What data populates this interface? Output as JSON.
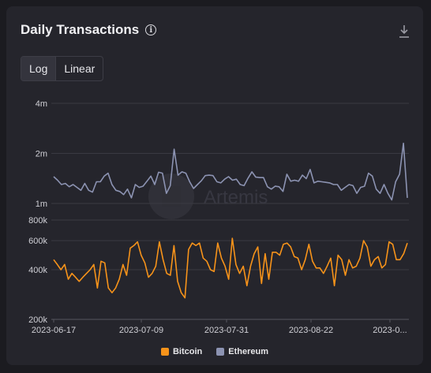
{
  "header": {
    "title": "Daily Transactions"
  },
  "icons": {
    "info": "info-icon",
    "download": "download-icon"
  },
  "scale_toggle": {
    "options": [
      "Log",
      "Linear"
    ],
    "selected": "Log"
  },
  "watermark": "Artemis",
  "colors": {
    "bitcoin": "#f7931a",
    "ethereum": "#8c93b2",
    "grid": "#3a3a42",
    "text": "#d0d0d6"
  },
  "chart_data": {
    "type": "line",
    "x_tick_labels": [
      "2023-06-17",
      "2023-07-09",
      "2023-07-31",
      "2023-08-22",
      "2023-0..."
    ],
    "upper_panel": {
      "scale": "log",
      "y_ticks": [
        "4m",
        "2m",
        "1m"
      ],
      "ylim": [
        1000000,
        4000000
      ]
    },
    "lower_panel": {
      "scale": "log",
      "y_ticks": [
        "800k",
        "600k",
        "400k",
        "200k"
      ],
      "ylim": [
        200000,
        800000
      ]
    },
    "legend": [
      "Bitcoin",
      "Ethereum"
    ],
    "x_start": "2023-06-17",
    "x_end": "2023-09-10",
    "series": [
      {
        "name": "Ethereum",
        "panel": "upper",
        "values": [
          1450000,
          1380000,
          1300000,
          1320000,
          1260000,
          1300000,
          1250000,
          1200000,
          1320000,
          1200000,
          1170000,
          1350000,
          1350000,
          1460000,
          1520000,
          1300000,
          1200000,
          1180000,
          1130000,
          1220000,
          1080000,
          1300000,
          1250000,
          1270000,
          1360000,
          1460000,
          1300000,
          1540000,
          1520000,
          1150000,
          1280000,
          2120000,
          1480000,
          1550000,
          1520000,
          1350000,
          1230000,
          1300000,
          1370000,
          1470000,
          1480000,
          1470000,
          1350000,
          1330000,
          1400000,
          1450000,
          1380000,
          1400000,
          1300000,
          1280000,
          1420000,
          1550000,
          1440000,
          1430000,
          1430000,
          1260000,
          1220000,
          1270000,
          1260000,
          1180000,
          1500000,
          1360000,
          1380000,
          1360000,
          1480000,
          1410000,
          1600000,
          1330000,
          1360000,
          1350000,
          1340000,
          1330000,
          1300000,
          1300000,
          1200000,
          1250000,
          1300000,
          1280000,
          1150000,
          1250000,
          1270000,
          1520000,
          1460000,
          1220000,
          1150000,
          1300000,
          1150000,
          1050000,
          1350000,
          1500000,
          2300000,
          1080000
        ]
      },
      {
        "name": "Bitcoin",
        "panel": "lower",
        "values": [
          460000,
          430000,
          400000,
          430000,
          350000,
          380000,
          360000,
          340000,
          360000,
          380000,
          400000,
          430000,
          310000,
          450000,
          440000,
          310000,
          290000,
          310000,
          350000,
          430000,
          370000,
          540000,
          560000,
          590000,
          490000,
          440000,
          360000,
          380000,
          420000,
          590000,
          460000,
          380000,
          370000,
          560000,
          340000,
          290000,
          270000,
          530000,
          580000,
          560000,
          580000,
          470000,
          450000,
          400000,
          390000,
          580000,
          470000,
          420000,
          350000,
          620000,
          430000,
          380000,
          420000,
          320000,
          420000,
          500000,
          550000,
          330000,
          500000,
          350000,
          510000,
          510000,
          490000,
          570000,
          580000,
          550000,
          480000,
          470000,
          400000,
          460000,
          570000,
          450000,
          410000,
          410000,
          380000,
          420000,
          470000,
          320000,
          490000,
          460000,
          370000,
          460000,
          410000,
          420000,
          470000,
          600000,
          550000,
          420000,
          460000,
          480000,
          410000,
          430000,
          590000,
          570000,
          460000,
          460000,
          500000,
          580000
        ]
      }
    ]
  }
}
